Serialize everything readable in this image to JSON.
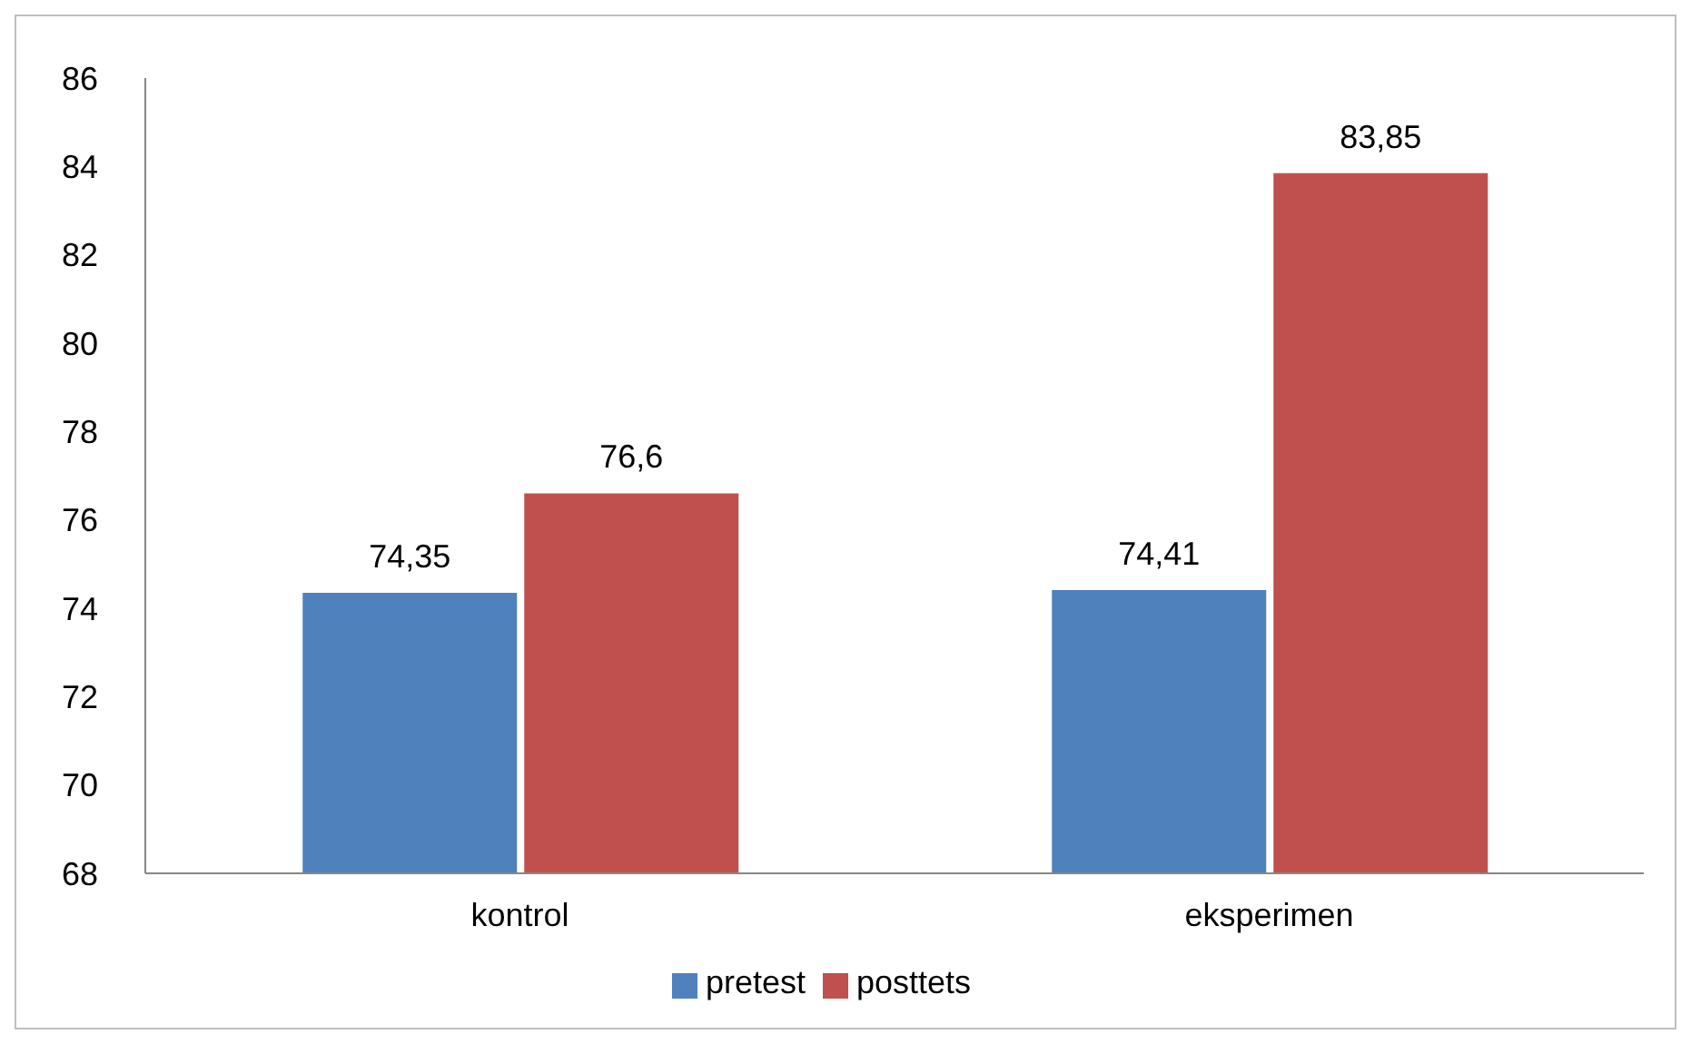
{
  "chart_data": {
    "type": "bar",
    "categories": [
      "kontrol",
      "eksperimen"
    ],
    "series": [
      {
        "name": "pretest",
        "color": "#4f81bd",
        "values": [
          74.35,
          74.41
        ],
        "value_labels": [
          "74,35",
          "74,41"
        ]
      },
      {
        "name": "posttets",
        "color": "#c0504d",
        "values": [
          76.6,
          83.85
        ],
        "value_labels": [
          "76,6",
          "83,85"
        ]
      }
    ],
    "ylim": [
      68,
      86
    ],
    "yticks": [
      68,
      70,
      72,
      74,
      76,
      78,
      80,
      82,
      84,
      86
    ],
    "grid": false,
    "legend": "bottom"
  }
}
